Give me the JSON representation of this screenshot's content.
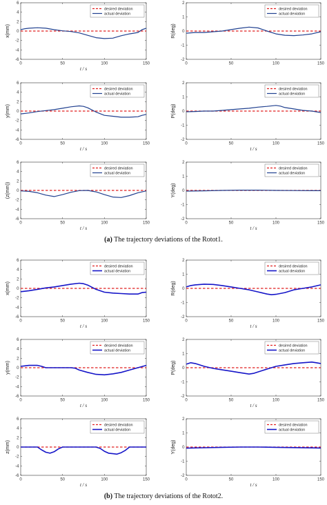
{
  "captions": {
    "a_label": "(a)",
    "a_text": "The trajectory deviations of the Rotot1.",
    "b_label": "(b)",
    "b_text": "The trajectory deviations of the Rotot2."
  },
  "colors": {
    "desired": "#e01e1e",
    "actual_a": "#1f3f8f",
    "actual_b": "#1414c8"
  },
  "chart_data": [
    {
      "type": "line",
      "panel": "a-x",
      "ylabel": "x(mm)",
      "xlabel": "t / s",
      "ylim": [
        -6,
        6
      ],
      "yticks": [
        6,
        4,
        2,
        0,
        -2,
        -4,
        -6
      ],
      "xlim": [
        0,
        150
      ],
      "xticks": [
        0,
        50,
        100,
        150
      ],
      "legend": [
        "desired deviation",
        "actual deviation"
      ],
      "legend_position": "top-right",
      "series": [
        {
          "name": "desired deviation",
          "x": [
            0,
            150
          ],
          "y": [
            0,
            0
          ]
        },
        {
          "name": "actual deviation",
          "x": [
            0,
            5,
            10,
            20,
            30,
            40,
            50,
            60,
            70,
            80,
            90,
            100,
            110,
            120,
            130,
            140,
            145,
            150
          ],
          "y": [
            0.3,
            0.5,
            0.6,
            0.7,
            0.6,
            0.3,
            0.05,
            -0.1,
            -0.4,
            -0.9,
            -1.4,
            -1.6,
            -1.5,
            -1.0,
            -0.6,
            -0.3,
            0.3,
            0.6
          ]
        }
      ]
    },
    {
      "type": "line",
      "panel": "a-R",
      "ylabel": "R(deg)",
      "xlabel": "",
      "ylim": [
        -2,
        2
      ],
      "yticks": [
        2,
        1,
        0,
        -1,
        -2
      ],
      "xlim": [
        0,
        150
      ],
      "xticks": [
        0,
        50,
        100,
        150
      ],
      "legend": [
        "desired deviation",
        "actual deviation"
      ],
      "legend_position": "top-right",
      "series": [
        {
          "name": "desired deviation",
          "x": [
            0,
            150
          ],
          "y": [
            0,
            0
          ]
        },
        {
          "name": "actual deviation",
          "x": [
            0,
            10,
            20,
            30,
            40,
            50,
            60,
            70,
            80,
            90,
            100,
            110,
            120,
            130,
            140,
            150
          ],
          "y": [
            -0.15,
            -0.1,
            -0.1,
            -0.05,
            0.0,
            0.1,
            0.2,
            0.28,
            0.22,
            0.0,
            -0.2,
            -0.3,
            -0.32,
            -0.28,
            -0.2,
            -0.05
          ]
        }
      ]
    },
    {
      "type": "line",
      "panel": "a-y",
      "ylabel": "y(mm)",
      "xlabel": "t / s",
      "ylim": [
        -6,
        6
      ],
      "yticks": [
        6,
        4,
        2,
        0,
        -2,
        -4,
        -6
      ],
      "xlim": [
        0,
        150
      ],
      "xticks": [
        0,
        50,
        100,
        150
      ],
      "legend": [
        "desired deviation",
        "actual deviation"
      ],
      "legend_position": "top-right",
      "series": [
        {
          "name": "desired deviation",
          "x": [
            0,
            150
          ],
          "y": [
            0,
            0
          ]
        },
        {
          "name": "actual deviation",
          "x": [
            0,
            10,
            20,
            30,
            40,
            50,
            60,
            70,
            75,
            80,
            90,
            100,
            110,
            120,
            130,
            140,
            145,
            150
          ],
          "y": [
            -0.6,
            -0.4,
            -0.1,
            0.1,
            0.3,
            0.6,
            0.9,
            1.1,
            1.0,
            0.7,
            -0.2,
            -0.9,
            -1.1,
            -1.3,
            -1.3,
            -1.2,
            -0.9,
            -0.7
          ]
        }
      ]
    },
    {
      "type": "line",
      "panel": "a-P",
      "ylabel": "P(deg)",
      "xlabel": "t / s",
      "ylim": [
        -2,
        2
      ],
      "yticks": [
        2,
        1,
        0,
        -1,
        -2
      ],
      "xlim": [
        0,
        150
      ],
      "xticks": [
        0,
        50,
        100,
        150
      ],
      "legend": [
        "desired deviation",
        "actual deviation"
      ],
      "legend_position": "top-right",
      "series": [
        {
          "name": "desired deviation",
          "x": [
            0,
            150
          ],
          "y": [
            0,
            0
          ]
        },
        {
          "name": "actual deviation",
          "x": [
            0,
            10,
            20,
            30,
            40,
            50,
            60,
            70,
            80,
            90,
            100,
            105,
            110,
            120,
            130,
            140,
            150
          ],
          "y": [
            -0.05,
            -0.03,
            0.0,
            0.0,
            0.05,
            0.1,
            0.15,
            0.2,
            0.28,
            0.33,
            0.4,
            0.35,
            0.25,
            0.15,
            0.05,
            0.0,
            -0.1
          ]
        }
      ]
    },
    {
      "type": "line",
      "panel": "a-z",
      "ylabel": "(z(mm))",
      "xlabel": "t / s",
      "ylim": [
        -6,
        6
      ],
      "yticks": [
        6,
        4,
        2,
        0,
        -2,
        -4,
        -6
      ],
      "xlim": [
        0,
        150
      ],
      "xticks": [
        0,
        50,
        100,
        150
      ],
      "legend": [
        "desired deviation",
        "actual deviation"
      ],
      "legend_position": "top-right",
      "series": [
        {
          "name": "desired deviation",
          "x": [
            0,
            150
          ],
          "y": [
            0,
            0
          ]
        },
        {
          "name": "actual deviation",
          "x": [
            0,
            10,
            20,
            30,
            40,
            50,
            60,
            70,
            80,
            90,
            100,
            110,
            120,
            130,
            140,
            150
          ],
          "y": [
            -0.1,
            -0.2,
            -0.5,
            -1.0,
            -1.3,
            -0.9,
            -0.4,
            -0.05,
            0.0,
            -0.3,
            -0.9,
            -1.4,
            -1.5,
            -1.1,
            -0.5,
            -0.1
          ]
        }
      ]
    },
    {
      "type": "line",
      "panel": "a-Y",
      "ylabel": "Y(deg)",
      "xlabel": "t / s",
      "ylim": [
        -2,
        2
      ],
      "yticks": [
        2,
        1,
        0,
        -1,
        -2
      ],
      "xlim": [
        0,
        150
      ],
      "xticks": [
        0,
        50,
        100,
        150
      ],
      "legend": [
        "desired deviation",
        "actual deviation"
      ],
      "legend_position": "top-right",
      "series": [
        {
          "name": "desired deviation",
          "x": [
            0,
            150
          ],
          "y": [
            0,
            0
          ]
        },
        {
          "name": "actual deviation",
          "x": [
            0,
            20,
            40,
            60,
            80,
            100,
            120,
            140,
            150
          ],
          "y": [
            -0.05,
            -0.03,
            0.0,
            0.02,
            0.02,
            0.0,
            -0.01,
            -0.02,
            -0.02
          ]
        }
      ]
    },
    {
      "type": "line",
      "panel": "b-x",
      "ylabel": "x(mm)",
      "xlabel": "t / s",
      "ylim": [
        -6,
        6
      ],
      "yticks": [
        6,
        4,
        2,
        0,
        -2,
        -4,
        -6
      ],
      "xlim": [
        0,
        150
      ],
      "xticks": [
        0,
        50,
        100,
        150
      ],
      "legend": [
        "desired deviation",
        "actual deviation"
      ],
      "legend_position": "top-right",
      "series": [
        {
          "name": "desired deviation",
          "x": [
            0,
            150
          ],
          "y": [
            0,
            0
          ]
        },
        {
          "name": "actual deviation",
          "x": [
            0,
            10,
            20,
            30,
            40,
            50,
            60,
            70,
            75,
            80,
            90,
            100,
            110,
            120,
            130,
            140,
            145,
            150
          ],
          "y": [
            -0.7,
            -0.5,
            -0.2,
            0.1,
            0.3,
            0.6,
            0.9,
            1.1,
            1.0,
            0.7,
            -0.2,
            -0.8,
            -1.0,
            -1.1,
            -1.2,
            -1.2,
            -0.9,
            -0.8
          ]
        }
      ]
    },
    {
      "type": "line",
      "panel": "b-R",
      "ylabel": "R(deg)",
      "xlabel": "t / s",
      "ylim": [
        -2,
        2
      ],
      "yticks": [
        2,
        1,
        0,
        -1,
        -2
      ],
      "xlim": [
        0,
        150
      ],
      "xticks": [
        0,
        50,
        100,
        150
      ],
      "legend": [
        "desired deviation",
        "actual deviation"
      ],
      "legend_position": "top-right",
      "series": [
        {
          "name": "desired deviation",
          "x": [
            0,
            150
          ],
          "y": [
            0,
            0
          ]
        },
        {
          "name": "actual deviation",
          "x": [
            0,
            5,
            10,
            20,
            30,
            40,
            50,
            60,
            70,
            80,
            90,
            95,
            100,
            110,
            120,
            130,
            140,
            150
          ],
          "y": [
            0.1,
            0.2,
            0.25,
            0.3,
            0.28,
            0.2,
            0.1,
            0.0,
            -0.1,
            -0.25,
            -0.4,
            -0.45,
            -0.42,
            -0.3,
            -0.1,
            0.0,
            0.1,
            0.25
          ]
        }
      ]
    },
    {
      "type": "line",
      "panel": "b-y",
      "ylabel": "y(mm)",
      "xlabel": "t / s",
      "ylim": [
        -6,
        6
      ],
      "yticks": [
        6,
        4,
        2,
        0,
        -2,
        -4,
        -6
      ],
      "xlim": [
        0,
        150
      ],
      "xticks": [
        0,
        50,
        100,
        150
      ],
      "legend": [
        "desired deviation",
        "actual deviation"
      ],
      "legend_position": "top-right",
      "series": [
        {
          "name": "desired deviation",
          "x": [
            0,
            150
          ],
          "y": [
            0,
            0
          ]
        },
        {
          "name": "actual deviation",
          "x": [
            0,
            5,
            10,
            20,
            25,
            30,
            40,
            50,
            60,
            65,
            70,
            80,
            90,
            100,
            110,
            120,
            130,
            140,
            150
          ],
          "y": [
            0.3,
            0.4,
            0.5,
            0.5,
            0.3,
            0.0,
            0.0,
            0.0,
            0.0,
            -0.1,
            -0.5,
            -1.0,
            -1.4,
            -1.5,
            -1.3,
            -1.0,
            -0.5,
            0.0,
            0.5
          ]
        }
      ]
    },
    {
      "type": "line",
      "panel": "b-P",
      "ylabel": "P(deg)",
      "xlabel": "t / s",
      "ylim": [
        -2,
        2
      ],
      "yticks": [
        2,
        1,
        0,
        -1,
        -2
      ],
      "xlim": [
        0,
        150
      ],
      "xticks": [
        0,
        50,
        100,
        150
      ],
      "legend": [
        "desired deviation",
        "actual deviation"
      ],
      "legend_position": "top-right",
      "series": [
        {
          "name": "desired deviation",
          "x": [
            0,
            150
          ],
          "y": [
            0,
            0
          ]
        },
        {
          "name": "actual deviation",
          "x": [
            0,
            5,
            10,
            20,
            30,
            40,
            50,
            60,
            70,
            75,
            80,
            90,
            100,
            110,
            120,
            130,
            140,
            145,
            150
          ],
          "y": [
            0.25,
            0.35,
            0.3,
            0.1,
            -0.05,
            -0.15,
            -0.25,
            -0.35,
            -0.45,
            -0.4,
            -0.3,
            -0.1,
            0.1,
            0.2,
            0.3,
            0.35,
            0.4,
            0.35,
            0.3
          ]
        }
      ]
    },
    {
      "type": "line",
      "panel": "b-z",
      "ylabel": "z(mm)",
      "xlabel": "t / s",
      "ylim": [
        -6,
        6
      ],
      "yticks": [
        6,
        4,
        2,
        0,
        -2,
        -4,
        -6
      ],
      "xlim": [
        0,
        150
      ],
      "xticks": [
        0,
        50,
        100,
        150
      ],
      "legend": [
        "desired deviation",
        "actual deviation"
      ],
      "legend_position": "top-right",
      "series": [
        {
          "name": "desired deviation",
          "x": [
            0,
            150
          ],
          "y": [
            0,
            0
          ]
        },
        {
          "name": "actual deviation",
          "x": [
            0,
            10,
            20,
            25,
            30,
            35,
            40,
            45,
            50,
            60,
            70,
            80,
            90,
            95,
            100,
            105,
            110,
            115,
            120,
            125,
            130,
            140,
            150
          ],
          "y": [
            0,
            0,
            0,
            -0.6,
            -1.1,
            -1.3,
            -1.0,
            -0.4,
            0,
            0,
            0,
            0,
            0,
            -0.3,
            -0.9,
            -1.3,
            -1.4,
            -1.5,
            -1.2,
            -0.7,
            0,
            0,
            0
          ]
        }
      ]
    },
    {
      "type": "line",
      "panel": "b-Y",
      "ylabel": "Y(deg)",
      "xlabel": "t / s",
      "ylim": [
        -2,
        2
      ],
      "yticks": [
        2,
        1,
        0,
        -1,
        -2
      ],
      "xlim": [
        0,
        150
      ],
      "xticks": [
        0,
        50,
        100,
        150
      ],
      "legend": [
        "desired deviation",
        "actual deviation"
      ],
      "legend_position": "top-right",
      "series": [
        {
          "name": "desired deviation",
          "x": [
            0,
            150
          ],
          "y": [
            0,
            0
          ]
        },
        {
          "name": "actual deviation",
          "x": [
            0,
            20,
            40,
            60,
            80,
            100,
            120,
            140,
            150
          ],
          "y": [
            -0.08,
            -0.05,
            -0.02,
            0.0,
            0.0,
            -0.02,
            -0.04,
            -0.06,
            -0.07
          ]
        }
      ]
    }
  ]
}
